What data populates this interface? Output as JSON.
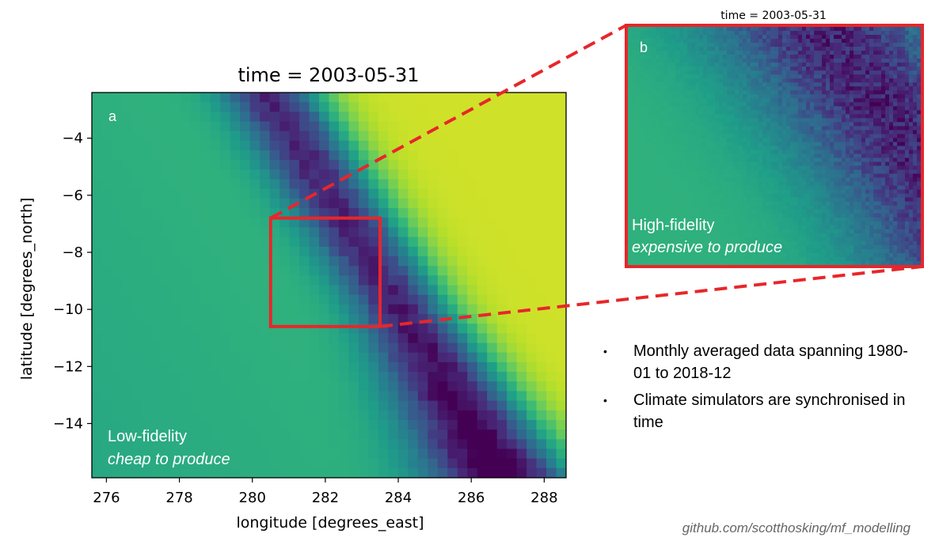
{
  "chart_data": [
    {
      "id": "a",
      "type": "heatmap",
      "title": "time = 2003-05-31",
      "panel_label": "a",
      "xlabel": "longitude [degrees_east]",
      "ylabel": "latitude [degrees_north]",
      "xlim": [
        275.6,
        288.6
      ],
      "ylim": [
        -15.9,
        -2.4
      ],
      "xticks": [
        276,
        278,
        280,
        282,
        284,
        286,
        288
      ],
      "yticks": [
        -4,
        -6,
        -8,
        -10,
        -12,
        -14
      ],
      "xtick_labels": [
        "276",
        "278",
        "280",
        "282",
        "284",
        "286",
        "288"
      ],
      "ytick_labels": [
        "−4",
        "−6",
        "−8",
        "−10",
        "−12",
        "−14"
      ],
      "annotation_line1": "Low-fidelity",
      "annotation_line2": "cheap to produce",
      "colormap": "viridis",
      "zoom_box": {
        "lon": [
          280.5,
          283.5
        ],
        "lat": [
          -10.6,
          -6.8
        ]
      },
      "grid": false
    },
    {
      "id": "b",
      "type": "heatmap",
      "title": "time = 2003-05-31",
      "panel_label": "b",
      "annotation_line1": "High-fidelity",
      "annotation_line2": "expensive to produce",
      "colormap": "viridis",
      "extent_lon": [
        280.5,
        283.5
      ],
      "extent_lat": [
        -10.6,
        -6.8
      ]
    }
  ],
  "bullets": [
    "Monthly averaged data spanning 1980-01 to 2018-12",
    "Climate simulators are synchronised in time"
  ],
  "bullet_glyph": "•",
  "source": "github.com/scotthosking/mf_modelling",
  "colors": {
    "highlight": "#e8262a",
    "text_on_map": "#ffffff",
    "axis": "#000000"
  }
}
